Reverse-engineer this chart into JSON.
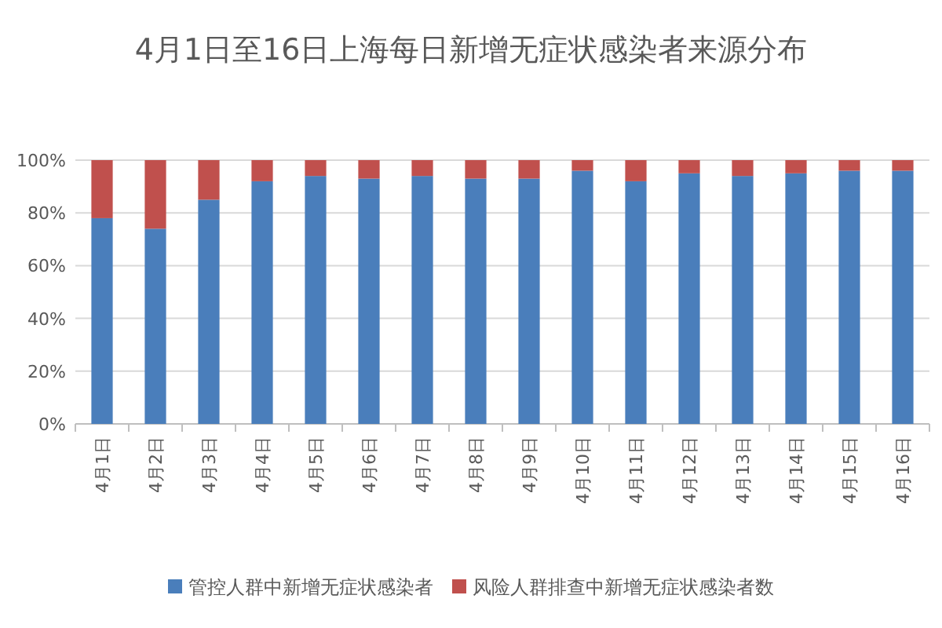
{
  "chart_data": {
    "type": "bar",
    "title": "4月1日至16日上海每日新增无症状感染者来源分布",
    "categories": [
      "4月1日",
      "4月2日",
      "4月3日",
      "4月4日",
      "4月5日",
      "4月6日",
      "4月7日",
      "4月8日",
      "4月9日",
      "4月10日",
      "4月11日",
      "4月12日",
      "4月13日",
      "4月14日",
      "4月15日",
      "4月16日"
    ],
    "series": [
      {
        "name": "管控人群中新增无症状感染者",
        "color": "#4a7ebb",
        "values": [
          78,
          74,
          85,
          92,
          94,
          93,
          94,
          93,
          93,
          96,
          92,
          95,
          94,
          95,
          96,
          96
        ]
      },
      {
        "name": "风险人群排查中新增无症状感染者数",
        "color": "#c0504d",
        "values": [
          22,
          26,
          15,
          8,
          6,
          7,
          6,
          7,
          7,
          4,
          8,
          5,
          6,
          5,
          4,
          4
        ]
      }
    ],
    "stacked": true,
    "ylim": [
      0,
      100
    ],
    "yticks": [
      {
        "value": 0,
        "label": "0%"
      },
      {
        "value": 20,
        "label": "20%"
      },
      {
        "value": 40,
        "label": "40%"
      },
      {
        "value": 60,
        "label": "60%"
      },
      {
        "value": 80,
        "label": "80%"
      },
      {
        "value": 100,
        "label": "100%"
      }
    ],
    "grid": "y",
    "legend": "bottom"
  }
}
